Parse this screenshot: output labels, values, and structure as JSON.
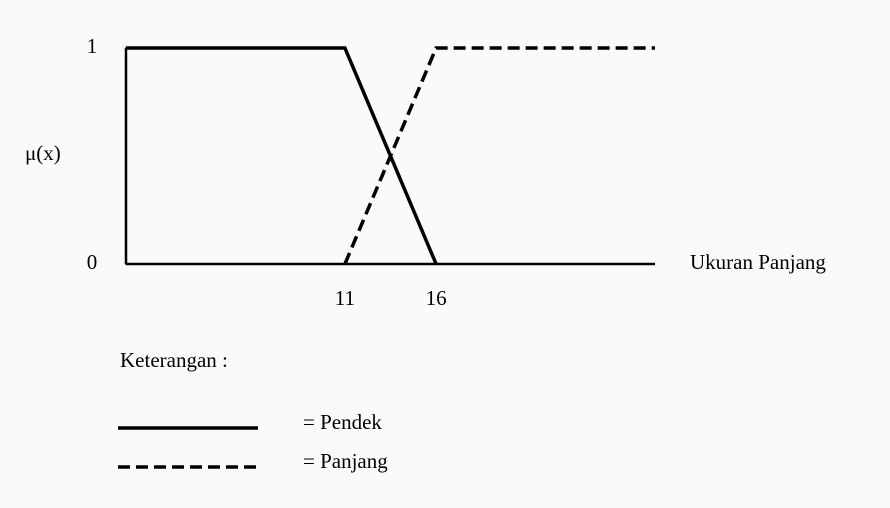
{
  "chart_data": {
    "type": "line",
    "ylabel": "μ(x)",
    "xlabel": "Ukuran Panjang",
    "xlim": [
      -1,
      28
    ],
    "ylim": [
      0,
      1
    ],
    "xticks": [
      11,
      16
    ],
    "yticks": [
      0,
      1
    ],
    "legend_title": "Keterangan :",
    "series": [
      {
        "name": "= Pendek",
        "color": "#000000",
        "style": "solid",
        "x": [
          -1,
          11,
          16
        ],
        "values": [
          1,
          1,
          0
        ]
      },
      {
        "name": "= Panjang",
        "color": "#000000",
        "style": "dashed",
        "x": [
          11,
          16,
          28
        ],
        "values": [
          0,
          1,
          1
        ]
      }
    ]
  }
}
